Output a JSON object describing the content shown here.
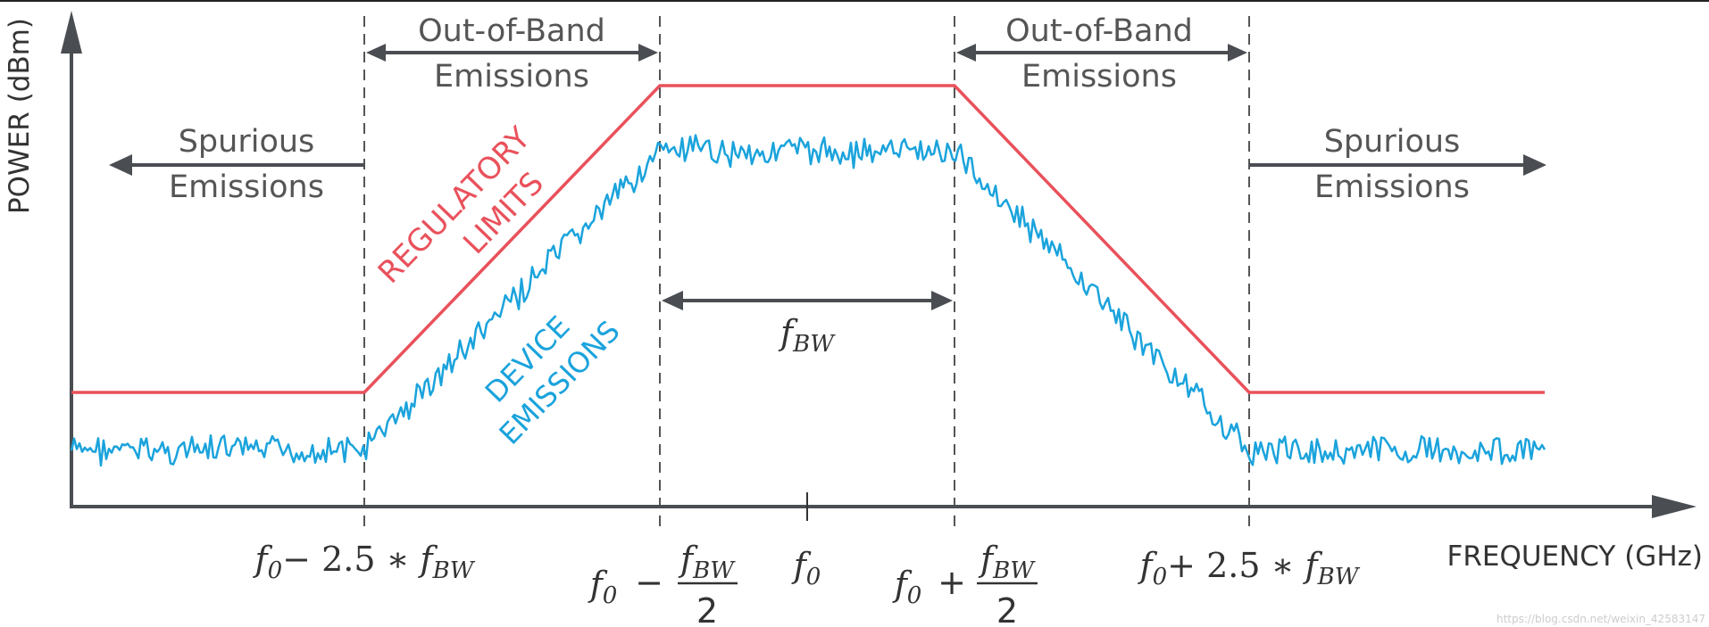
{
  "axes": {
    "y_label": "POWER (dBm)",
    "x_label": "FREQUENCY (GHz)"
  },
  "labels": {
    "oob_line1": "Out-of-Band",
    "oob_line2": "Emissions",
    "spur_line1": "Spurious",
    "spur_line2": "Emissions",
    "reg_line1": "REGULATORY",
    "reg_line2": "LIMITS",
    "dev_line1": "DEVICE",
    "dev_line2": "EMISSIONS"
  },
  "ticks": {
    "f0": "f",
    "f0_sub": "0",
    "f_bw": "f",
    "f_bw_sub": "BW",
    "minus_2p5": "− 2.5 ∗ ",
    "plus_2p5": "+ 2.5 ∗ ",
    "minus": "−",
    "plus": "+",
    "two": "2"
  },
  "watermark": "https://blog.csdn.net/weixin_42583147",
  "colors": {
    "limit": "#e9515b",
    "device": "#1aa3dc",
    "axis": "#4a4d52",
    "text": "#555555"
  }
}
